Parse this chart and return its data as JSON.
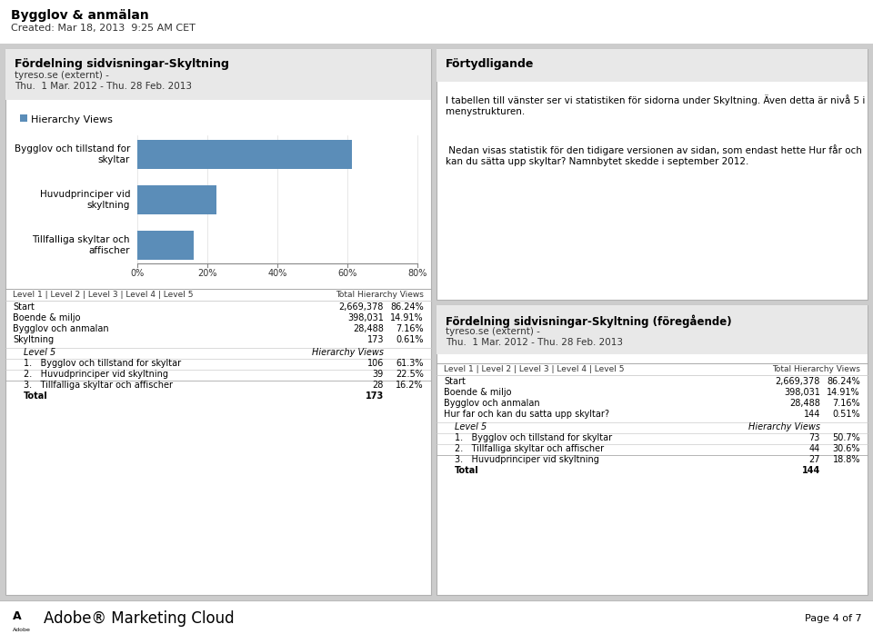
{
  "page_title": "Bygglov & anmälan",
  "page_subtitle": "Created: Mar 18, 2013  9:25 AM CET",
  "left_panel_title": "Fördelning sidvisningar-Skyltning",
  "left_panel_sub1": "tyreso.se (externt) -",
  "left_panel_sub2": "Thu.  1 Mar. 2012 - Thu. 28 Feb. 2013",
  "legend_label": "Hierarchy Views",
  "bar_categories": [
    "Bygglov och tillstand for\nskyltar",
    "Huvudprinciper vid\nskyltning",
    "Tillfalliga skyltar och\naffischer"
  ],
  "bar_values": [
    61.3,
    22.5,
    16.2
  ],
  "bar_color": "#5b8db8",
  "x_ticks": [
    0,
    20,
    40,
    60,
    80
  ],
  "x_tick_labels": [
    "0%",
    "20%",
    "40%",
    "60%",
    "80%"
  ],
  "table_header_left": "Level 1 | Level 2 | Level 3 | Level 4 | Level 5",
  "table_header_right": "Total Hierarchy Views",
  "table_rows": [
    [
      "Start",
      "2,669,378",
      "86.24%"
    ],
    [
      "Boende & miljo",
      "398,031",
      "14.91%"
    ],
    [
      "Bygglov och anmalan",
      "28,488",
      "7.16%"
    ],
    [
      "Skyltning",
      "173",
      "0.61%"
    ]
  ],
  "level5_header": [
    "Level 5",
    "Hierarchy Views"
  ],
  "level5_rows": [
    [
      "1.   Bygglov och tillstand for skyltar",
      "106",
      "61.3%"
    ],
    [
      "2.   Huvudprinciper vid skyltning",
      "39",
      "22.5%"
    ],
    [
      "3.   Tillfalliga skyltar och affischer",
      "28",
      "16.2%"
    ]
  ],
  "total_row": [
    "Total",
    "173",
    ""
  ],
  "right_panel_title": "Förtydligande",
  "right_panel_sub1": "I tabellen till vänster ser vi statistiken för sidorna under Skyltning. Även detta är nivå 5 i menystrukturen.",
  "right_panel_sub2": " Nedan visas statistik för den tidigare versionen av sidan, som endast hette Hur får och kan du sätta upp skyltar? Namnbytet skedde i september 2012.",
  "right2_panel_title": "Fördelning sidvisningar-Skyltning (föregående)",
  "right2_sub1": "tyreso.se (externt) -",
  "right2_sub2": "Thu.  1 Mar. 2012 - Thu. 28 Feb. 2013",
  "right2_table_header_left": "Level 1 | Level 2 | Level 3 | Level 4 | Level 5",
  "right2_table_header_right": "Total Hierarchy Views",
  "right2_table_rows": [
    [
      "Start",
      "2,669,378",
      "86.24%"
    ],
    [
      "Boende & miljo",
      "398,031",
      "14.91%"
    ],
    [
      "Bygglov och anmalan",
      "28,488",
      "7.16%"
    ],
    [
      "Hur far och kan du satta upp skyltar?",
      "144",
      "0.51%"
    ]
  ],
  "right2_level5_header": [
    "Level 5",
    "Hierarchy Views"
  ],
  "right2_level5_rows": [
    [
      "1.   Bygglov och tillstand for skyltar",
      "73",
      "50.7%"
    ],
    [
      "2.   Tillfalliga skyltar och affischer",
      "44",
      "30.6%"
    ],
    [
      "3.   Huvudprinciper vid skyltning",
      "27",
      "18.8%"
    ]
  ],
  "right2_total_row": [
    "Total",
    "144",
    ""
  ],
  "footer_text": "Adobe® Marketing Cloud",
  "page_label": "Page 4 of 7",
  "bg_color": "#cccccc",
  "panel_header_bg": "#e8e8e8",
  "white": "#ffffff",
  "text_color": "#000000",
  "border_color": "#b0b0b0"
}
